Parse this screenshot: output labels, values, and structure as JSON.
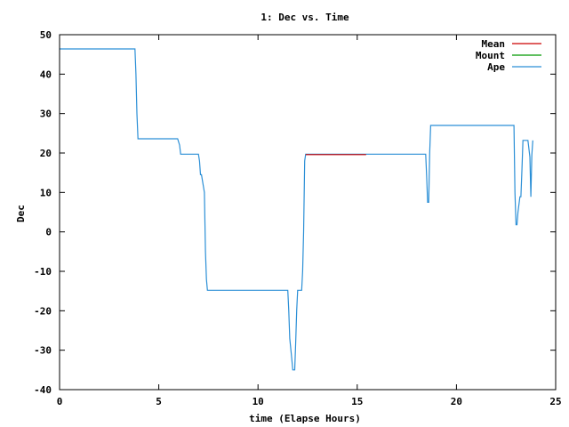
{
  "chart_data": {
    "type": "line",
    "title": "1: Dec vs. Time",
    "xlabel": "time (Elapse Hours)",
    "ylabel": "Dec",
    "xlim": [
      0,
      25
    ],
    "ylim": [
      -40,
      50
    ],
    "xticks": [
      0,
      5,
      10,
      15,
      20,
      25
    ],
    "yticks": [
      -40,
      -30,
      -20,
      -10,
      0,
      10,
      20,
      30,
      40,
      50
    ],
    "grid": false,
    "legend_position": "top-right",
    "series": [
      {
        "name": "Mean",
        "color": "#cc0000",
        "x": [
          12.4,
          15.45
        ],
        "y": [
          19.6,
          19.6
        ]
      },
      {
        "name": "Mount",
        "color": "#009900",
        "x": [],
        "y": []
      },
      {
        "name": "Ape",
        "color": "#2b8fd6",
        "x": [
          0,
          3.8,
          3.85,
          3.9,
          3.95,
          5.95,
          6.05,
          6.1,
          7.0,
          7.05,
          7.1,
          7.15,
          7.3,
          7.35,
          7.4,
          7.45,
          11.5,
          11.55,
          11.6,
          11.7,
          11.75,
          11.85,
          11.9,
          11.95,
          12.0,
          12.2,
          12.25,
          12.3,
          12.35,
          12.4,
          15.45,
          18.45,
          18.5,
          18.55,
          18.6,
          18.65,
          18.7,
          22.9,
          22.95,
          23.0,
          23.05,
          23.1,
          23.2,
          23.25,
          23.3,
          23.35,
          23.4,
          23.6,
          23.7,
          23.75,
          23.8,
          23.85
        ],
        "y": [
          46.4,
          46.4,
          40,
          30,
          23.6,
          23.6,
          22,
          19.7,
          19.7,
          18,
          14.5,
          14.5,
          10,
          -5,
          -12,
          -14.8,
          -14.8,
          -20,
          -27,
          -32,
          -35,
          -35,
          -28,
          -20,
          -14.8,
          -14.8,
          -10,
          0,
          18,
          19.7,
          19.7,
          19.7,
          14,
          7.5,
          7.5,
          20,
          27,
          27,
          10,
          1.8,
          1.8,
          5,
          8.9,
          8.9,
          16,
          23.2,
          23.2,
          23.2,
          19,
          8.9,
          19.5,
          23.2
        ]
      }
    ]
  }
}
